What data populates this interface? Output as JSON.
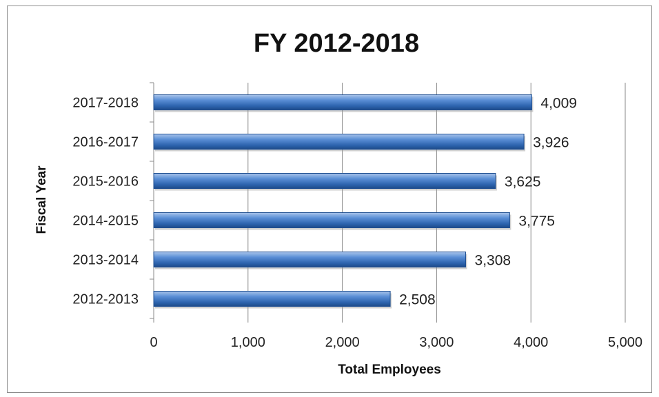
{
  "chart_data": {
    "type": "bar",
    "orientation": "horizontal",
    "title": "FY 2012-2018",
    "xlabel": "Total Employees",
    "ylabel": "Fiscal Year",
    "categories": [
      "2012-2013",
      "2013-2014",
      "2014-2015",
      "2015-2016",
      "2016-2017",
      "2017-2018"
    ],
    "values": [
      2508,
      3308,
      3775,
      3625,
      3926,
      4009
    ],
    "value_labels": [
      "2,508",
      "3,308",
      "3,775",
      "3,625",
      "3,926",
      "4,009"
    ],
    "xlim": [
      0,
      5000
    ],
    "xticks": [
      0,
      1000,
      2000,
      3000,
      4000,
      5000
    ],
    "xtick_labels": [
      "0",
      "1,000",
      "2,000",
      "3,000",
      "4,000",
      "5,000"
    ],
    "grid": "vertical",
    "legend": "none",
    "bar_color": "#4f81bd"
  }
}
